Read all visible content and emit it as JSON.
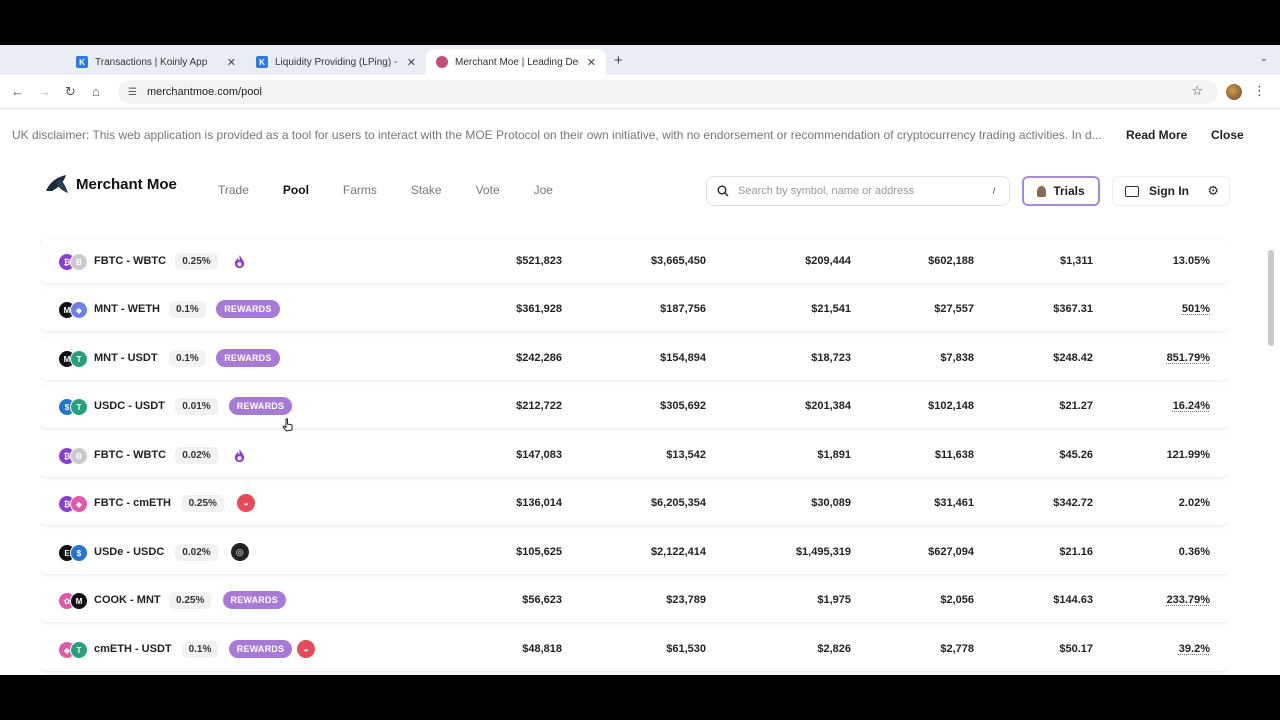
{
  "browser": {
    "tabs": [
      {
        "title": "Transactions | Koinly App",
        "icon": "koinly-icon"
      },
      {
        "title": "Liquidity Providing (LPing) - K",
        "icon": "koinly-icon"
      },
      {
        "title": "Merchant Moe | Leading Dece",
        "icon": "moe-icon"
      }
    ],
    "url": "merchantmoe.com/pool",
    "favicon_letter": "K"
  },
  "disclaimer": {
    "text": "UK disclaimer: This web application is provided as a tool for users to interact with the MOE Protocol on their own initiative, with no endorsement or recommendation of cryptocurrency trading activities. In d...",
    "read_more": "Read More",
    "close": "Close"
  },
  "header": {
    "brand": "Merchant Moe",
    "nav": [
      "Trade",
      "Pool",
      "Farms",
      "Stake",
      "Vote",
      "Joe"
    ],
    "active_nav": "Pool",
    "search_placeholder": "Search by symbol, name or address",
    "search_shortcut": "/",
    "trials_label": "Trials",
    "signin_label": "Sign In"
  },
  "pools": [
    {
      "pair": "FBTC - WBTC",
      "fee": "0.25%",
      "rewards": "",
      "badge": "flame",
      "coin_a": {
        "color": "#8b3fd1",
        "glyph": "₿"
      },
      "coin_b": {
        "color": "#c9c9d2",
        "glyph": "B"
      },
      "values": [
        "$521,823",
        "$3,665,450",
        "$209,444",
        "$602,188",
        "$1,311",
        "13.05%"
      ],
      "apr_link": false
    },
    {
      "pair": "MNT - WETH",
      "fee": "0.1%",
      "rewards": "REWARDS",
      "badge": "",
      "coin_a": {
        "color": "#111111",
        "glyph": "M"
      },
      "coin_b": {
        "color": "#6f7fe3",
        "glyph": "◆"
      },
      "values": [
        "$361,928",
        "$187,756",
        "$21,541",
        "$27,557",
        "$367.31",
        "501%"
      ],
      "apr_link": true
    },
    {
      "pair": "MNT - USDT",
      "fee": "0.1%",
      "rewards": "REWARDS",
      "badge": "",
      "coin_a": {
        "color": "#111111",
        "glyph": "M"
      },
      "coin_b": {
        "color": "#26a17b",
        "glyph": "T"
      },
      "values": [
        "$242,286",
        "$154,894",
        "$18,723",
        "$7,838",
        "$248.42",
        "851.79%"
      ],
      "apr_link": true
    },
    {
      "pair": "USDC - USDT",
      "fee": "0.01%",
      "rewards": "REWARDS",
      "badge": "",
      "coin_a": {
        "color": "#2775ca",
        "glyph": "$"
      },
      "coin_b": {
        "color": "#26a17b",
        "glyph": "T"
      },
      "values": [
        "$212,722",
        "$305,692",
        "$201,384",
        "$102,148",
        "$21.27",
        "16.24%"
      ],
      "apr_link": true
    },
    {
      "pair": "FBTC - WBTC",
      "fee": "0.02%",
      "rewards": "",
      "badge": "flame",
      "coin_a": {
        "color": "#8b3fd1",
        "glyph": "₿"
      },
      "coin_b": {
        "color": "#c9c9d2",
        "glyph": "B"
      },
      "values": [
        "$147,083",
        "$13,542",
        "$1,891",
        "$11,638",
        "$45.26",
        "121.99%"
      ],
      "apr_link": false
    },
    {
      "pair": "FBTC - cmETH",
      "fee": "0.25%",
      "rewards": "",
      "badge": "red",
      "coin_a": {
        "color": "#8b3fd1",
        "glyph": "₿"
      },
      "coin_b": {
        "color": "#e05aa8",
        "glyph": "◆"
      },
      "values": [
        "$136,014",
        "$6,205,354",
        "$30,089",
        "$31,461",
        "$342.72",
        "2.02%"
      ],
      "apr_link": false
    },
    {
      "pair": "USDe - USDC",
      "fee": "0.02%",
      "rewards": "",
      "badge": "dark",
      "coin_a": {
        "color": "#111111",
        "glyph": "E"
      },
      "coin_b": {
        "color": "#2775ca",
        "glyph": "$"
      },
      "values": [
        "$105,625",
        "$2,122,414",
        "$1,495,319",
        "$627,094",
        "$21.16",
        "0.36%"
      ],
      "apr_link": false
    },
    {
      "pair": "COOK - MNT",
      "fee": "0.25%",
      "rewards": "REWARDS",
      "badge": "",
      "coin_a": {
        "color": "#e05aa8",
        "glyph": "✿"
      },
      "coin_b": {
        "color": "#111111",
        "glyph": "M"
      },
      "values": [
        "$56,623",
        "$23,789",
        "$1,975",
        "$2,056",
        "$144.63",
        "233.79%"
      ],
      "apr_link": true
    },
    {
      "pair": "cmETH - USDT",
      "fee": "0.1%",
      "rewards": "REWARDS",
      "badge": "red",
      "coin_a": {
        "color": "#e05aa8",
        "glyph": "◆"
      },
      "coin_b": {
        "color": "#26a17b",
        "glyph": "T"
      },
      "values": [
        "$48,818",
        "$61,530",
        "$2,826",
        "$2,778",
        "$50.17",
        "39.2%"
      ],
      "apr_link": true
    }
  ]
}
